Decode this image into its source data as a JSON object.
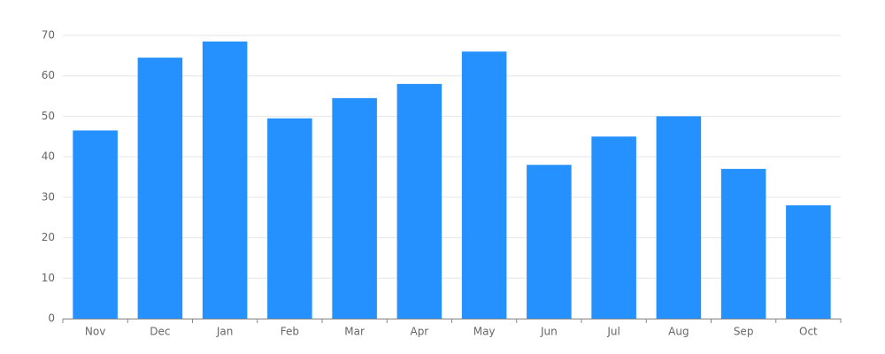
{
  "chart_data": {
    "type": "bar",
    "categories": [
      "Nov",
      "Dec",
      "Jan",
      "Feb",
      "Mar",
      "Apr",
      "May",
      "Jun",
      "Jul",
      "Aug",
      "Sep",
      "Oct"
    ],
    "values": [
      46.5,
      64.5,
      68.5,
      49.5,
      54.5,
      58,
      66,
      38,
      45,
      50,
      37,
      28
    ],
    "color": "#2491ff",
    "ylim": [
      0,
      70
    ],
    "yticks": [
      0,
      10,
      20,
      30,
      40,
      50,
      60,
      70
    ],
    "grid": true
  }
}
